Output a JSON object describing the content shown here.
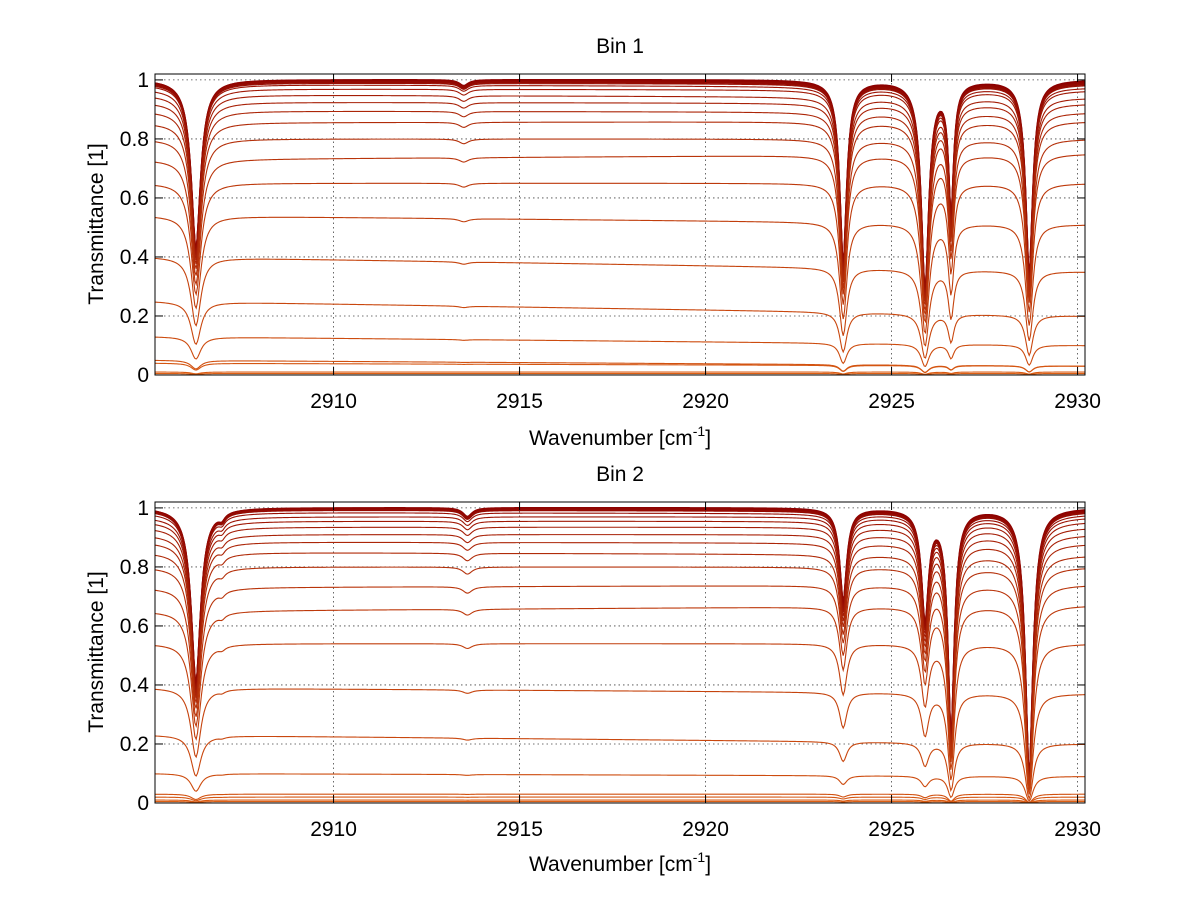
{
  "figure": {
    "background": "#ffffff"
  },
  "chart_data": [
    {
      "type": "line",
      "title": "Bin 1",
      "xlabel": "Wavenumber [cm",
      "xlabel_sup": "-1",
      "xlabel_suffix": "]",
      "ylabel": "Transmittance [1]",
      "xlim": [
        2905.2,
        2930.2
      ],
      "ylim": [
        0,
        1.02
      ],
      "xticks": [
        2910,
        2915,
        2920,
        2925,
        2930
      ],
      "yticks": [
        0,
        0.2,
        0.4,
        0.6,
        0.8,
        1
      ],
      "ytick_labels": [
        "0",
        "0.2",
        "0.4",
        "0.6",
        "0.8",
        "1"
      ],
      "grid": true,
      "x_start": 2905.2,
      "x_end": 2930.2,
      "baselines_left": [
        1.0,
        1.0,
        0.995,
        0.99,
        0.985,
        0.97,
        0.95,
        0.925,
        0.895,
        0.855,
        0.8,
        0.73,
        0.65,
        0.54,
        0.4,
        0.25,
        0.13,
        0.05,
        0.04,
        0.01,
        0.005,
        0.0
      ],
      "baselines_right": [
        1.0,
        0.995,
        0.99,
        0.985,
        0.975,
        0.965,
        0.94,
        0.92,
        0.89,
        0.86,
        0.8,
        0.75,
        0.65,
        0.51,
        0.35,
        0.2,
        0.1,
        0.03,
        0.03,
        0.01,
        0.005,
        0.0
      ],
      "peaks": [
        {
          "x": 2906.3,
          "depth": 0.58,
          "width": 0.16
        },
        {
          "x": 2913.5,
          "depth": 0.02,
          "width": 0.15
        },
        {
          "x": 2923.7,
          "depth": 0.63,
          "width": 0.12
        },
        {
          "x": 2925.9,
          "depth": 0.72,
          "width": 0.13
        },
        {
          "x": 2926.6,
          "depth": 0.45,
          "width": 0.09
        },
        {
          "x": 2928.7,
          "depth": 0.67,
          "width": 0.12
        }
      ]
    },
    {
      "type": "line",
      "title": "Bin 2",
      "xlabel": "Wavenumber [cm",
      "xlabel_sup": "-1",
      "xlabel_suffix": "]",
      "ylabel": "Transmittance [1]",
      "xlim": [
        2905.2,
        2930.2
      ],
      "ylim": [
        0,
        1.02
      ],
      "xticks": [
        2910,
        2915,
        2920,
        2925,
        2930
      ],
      "yticks": [
        0,
        0.2,
        0.4,
        0.6,
        0.8,
        1
      ],
      "ytick_labels": [
        "0",
        "0.2",
        "0.4",
        "0.6",
        "0.8",
        "1"
      ],
      "grid": true,
      "x_start": 2905.2,
      "x_end": 2930.2,
      "baselines_left": [
        1.0,
        1.0,
        0.995,
        0.985,
        0.97,
        0.955,
        0.935,
        0.91,
        0.885,
        0.85,
        0.8,
        0.73,
        0.65,
        0.54,
        0.39,
        0.23,
        0.1,
        0.03,
        0.02,
        0.01,
        0.005,
        0.0
      ],
      "baselines_right": [
        1.0,
        0.995,
        0.99,
        0.98,
        0.97,
        0.955,
        0.935,
        0.91,
        0.88,
        0.84,
        0.8,
        0.74,
        0.67,
        0.54,
        0.37,
        0.2,
        0.09,
        0.03,
        0.02,
        0.01,
        0.005,
        0.0
      ],
      "peaks": [
        {
          "x": 2906.3,
          "depth": 0.6,
          "width": 0.16
        },
        {
          "x": 2907.0,
          "depth": 0.02,
          "width": 0.1
        },
        {
          "x": 2913.6,
          "depth": 0.03,
          "width": 0.15
        },
        {
          "x": 2923.7,
          "depth": 0.32,
          "width": 0.12
        },
        {
          "x": 2925.9,
          "depth": 0.38,
          "width": 0.12
        },
        {
          "x": 2926.6,
          "depth": 0.78,
          "width": 0.11
        },
        {
          "x": 2928.7,
          "depth": 0.92,
          "width": 0.13
        }
      ]
    }
  ]
}
